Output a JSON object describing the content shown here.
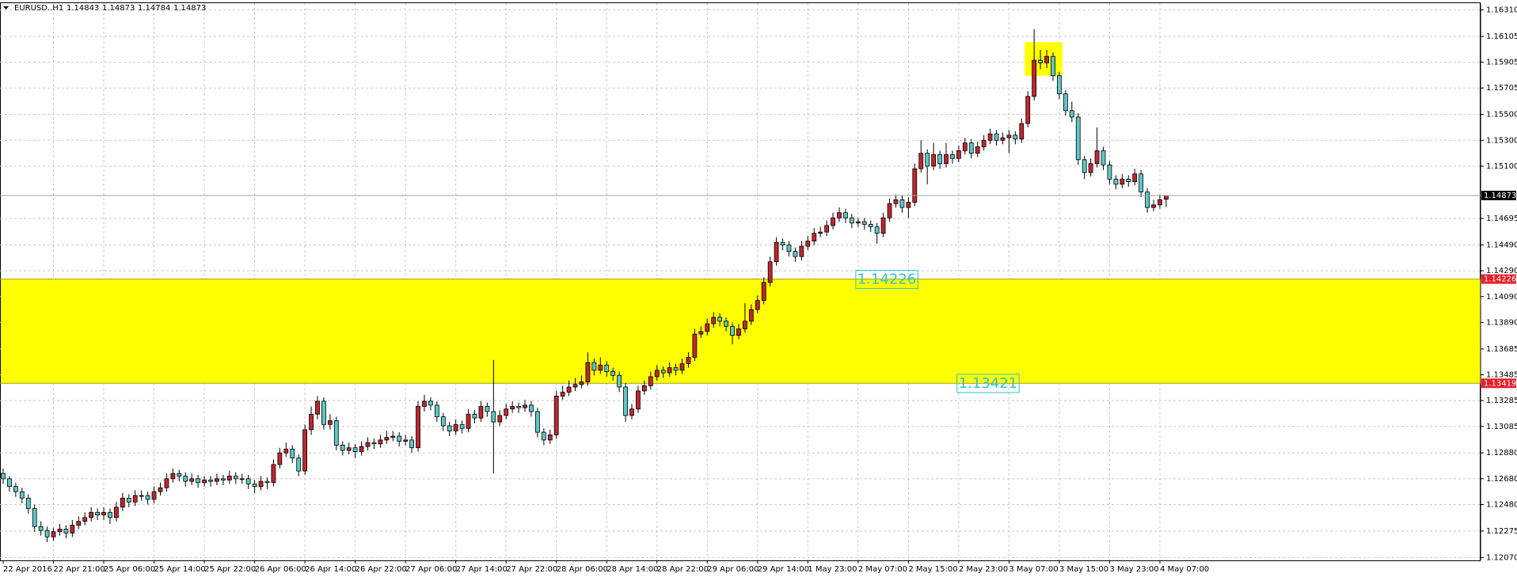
{
  "chart_data": {
    "type": "candlestick",
    "symbol": "EURUSD..H1",
    "up_color": "#c0262d",
    "down_color": "#5cc8c8",
    "wick_color": "#000000",
    "grid": true,
    "ylim": [
      1.12048,
      1.16362
    ],
    "yticks": [
      {
        "value": 1.1631,
        "label": "1.16310"
      },
      1.16105,
      1.15905,
      1.15705,
      {
        "value": 1.155,
        "label": "1.15500"
      },
      {
        "value": 1.153,
        "label": "1.15300"
      },
      {
        "value": 1.151,
        "label": "1.15100"
      },
      1.14695,
      {
        "value": 1.1449,
        "label": "1.14490"
      },
      {
        "value": 1.1429,
        "label": "1.14290"
      },
      {
        "value": 1.1409,
        "label": "1.14090"
      },
      {
        "value": 1.1389,
        "label": "1.13890"
      },
      1.13685,
      1.13485,
      1.13285,
      1.13085,
      {
        "value": 1.1288,
        "label": "1.12880"
      },
      {
        "value": 1.1268,
        "label": "1.12680"
      },
      {
        "value": 1.1248,
        "label": "1.12480"
      },
      1.12275,
      {
        "value": 1.1207,
        "label": "1.12070"
      }
    ],
    "zone": {
      "top": 1.14226,
      "bottom": 1.13419,
      "color": "#ffff00"
    },
    "highlight": {
      "top": 1.1606,
      "bottom": 1.158,
      "from": 163,
      "to": 168,
      "color": "#ffff00"
    },
    "annotations": [
      {
        "label": "1.14226",
        "y": 1.14226,
        "x": 135.5
      },
      {
        "label": "1.13421",
        "y": 1.13421,
        "x": 151.6
      }
    ],
    "categories": [
      "22 Apr 2016",
      null,
      null,
      null,
      null,
      null,
      null,
      null,
      "22 Apr 21:00",
      null,
      null,
      null,
      null,
      null,
      null,
      null,
      "25 Apr 06:00",
      null,
      null,
      null,
      null,
      null,
      null,
      null,
      "25 Apr 14:00",
      null,
      null,
      null,
      null,
      null,
      null,
      null,
      "25 Apr 22:00",
      null,
      null,
      null,
      null,
      null,
      null,
      null,
      "26 Apr 06:00",
      null,
      null,
      null,
      null,
      null,
      null,
      null,
      "26 Apr 14:00",
      null,
      null,
      null,
      null,
      null,
      null,
      null,
      "26 Apr 22:00",
      null,
      null,
      null,
      null,
      null,
      null,
      null,
      "27 Apr 06:00",
      null,
      null,
      null,
      null,
      null,
      null,
      null,
      "27 Apr 14:00",
      null,
      null,
      null,
      null,
      null,
      null,
      null,
      "27 Apr 22:00",
      null,
      null,
      null,
      null,
      null,
      null,
      null,
      "28 Apr 06:00",
      null,
      null,
      null,
      null,
      null,
      null,
      null,
      "28 Apr 14:00",
      null,
      null,
      null,
      null,
      null,
      null,
      null,
      "28 Apr 22:00",
      null,
      null,
      null,
      null,
      null,
      null,
      null,
      "29 Apr 06:00",
      null,
      null,
      null,
      null,
      null,
      null,
      null,
      "29 Apr 14:00",
      null,
      null,
      null,
      null,
      null,
      null,
      null,
      "1 May 23:00",
      null,
      null,
      null,
      null,
      null,
      null,
      null,
      "2 May 07:00",
      null,
      null,
      null,
      null,
      null,
      null,
      null,
      "2 May 15:00",
      null,
      null,
      null,
      null,
      null,
      null,
      null,
      "2 May 23:00",
      null,
      null,
      null,
      null,
      null,
      null,
      null,
      "3 May 07:00",
      null,
      null,
      null,
      null,
      null,
      null,
      null,
      "3 May 15:00",
      null,
      null,
      null,
      null,
      null,
      null,
      null,
      "3 May 23:00",
      null,
      null,
      null,
      null,
      null,
      null,
      null,
      "4 May 07:00",
      null
    ],
    "candles": [
      [
        1.1272,
        1.1276,
        1.1264,
        1.1268
      ],
      [
        1.1268,
        1.127,
        1.1258,
        1.1262
      ],
      [
        1.1262,
        1.1265,
        1.1254,
        1.1258
      ],
      [
        1.1258,
        1.1261,
        1.1249,
        1.1253
      ],
      [
        1.1253,
        1.1256,
        1.1241,
        1.1245
      ],
      [
        1.1245,
        1.1248,
        1.1227,
        1.1231
      ],
      [
        1.1231,
        1.1235,
        1.1224,
        1.1228
      ],
      [
        1.1228,
        1.1231,
        1.1219,
        1.1223
      ],
      [
        1.1223,
        1.123,
        1.122,
        1.1227
      ],
      [
        1.1227,
        1.1233,
        1.1224,
        1.1229
      ],
      [
        1.1229,
        1.1232,
        1.1222,
        1.1226
      ],
      [
        1.1226,
        1.1236,
        1.1223,
        1.1232
      ],
      [
        1.1232,
        1.1239,
        1.1229,
        1.1235
      ],
      [
        1.1235,
        1.1242,
        1.1232,
        1.1238
      ],
      [
        1.1238,
        1.1246,
        1.1235,
        1.1242
      ],
      [
        1.1242,
        1.1245,
        1.1236,
        1.124
      ],
      [
        1.124,
        1.1246,
        1.1236,
        1.1242
      ],
      [
        1.1242,
        1.1245,
        1.1233,
        1.1238
      ],
      [
        1.1238,
        1.125,
        1.1235,
        1.1246
      ],
      [
        1.1246,
        1.1257,
        1.1243,
        1.1253
      ],
      [
        1.1253,
        1.1256,
        1.1246,
        1.125
      ],
      [
        1.125,
        1.1259,
        1.1247,
        1.1255
      ],
      [
        1.1255,
        1.1259,
        1.1251,
        1.1255
      ],
      [
        1.1255,
        1.1258,
        1.1248,
        1.1252
      ],
      [
        1.1252,
        1.1262,
        1.1249,
        1.1258
      ],
      [
        1.1258,
        1.1265,
        1.1255,
        1.1261
      ],
      [
        1.1261,
        1.1272,
        1.1258,
        1.1268
      ],
      [
        1.1268,
        1.1276,
        1.1265,
        1.1272
      ],
      [
        1.1272,
        1.1275,
        1.1266,
        1.127
      ],
      [
        1.127,
        1.1273,
        1.1262,
        1.1266
      ],
      [
        1.1266,
        1.1272,
        1.1263,
        1.1268
      ],
      [
        1.1268,
        1.1271,
        1.1261,
        1.1265
      ],
      [
        1.1265,
        1.127,
        1.1262,
        1.1267
      ],
      [
        1.1267,
        1.127,
        1.1262,
        1.1266
      ],
      [
        1.1266,
        1.1272,
        1.1263,
        1.1268
      ],
      [
        1.1268,
        1.1271,
        1.1263,
        1.1267
      ],
      [
        1.1267,
        1.1274,
        1.1264,
        1.127
      ],
      [
        1.127,
        1.1273,
        1.1264,
        1.1268
      ],
      [
        1.1268,
        1.1272,
        1.1264,
        1.1268
      ],
      [
        1.1268,
        1.1271,
        1.126,
        1.1264
      ],
      [
        1.1264,
        1.1267,
        1.1257,
        1.1262
      ],
      [
        1.1262,
        1.127,
        1.1259,
        1.1266
      ],
      [
        1.1266,
        1.1269,
        1.126,
        1.1265
      ],
      [
        1.1265,
        1.1283,
        1.1262,
        1.1279
      ],
      [
        1.1279,
        1.1292,
        1.1276,
        1.1288
      ],
      [
        1.1288,
        1.1296,
        1.1285,
        1.1291
      ],
      [
        1.1291,
        1.1294,
        1.128,
        1.1284
      ],
      [
        1.1284,
        1.1287,
        1.127,
        1.1274
      ],
      [
        1.1274,
        1.131,
        1.1271,
        1.1306
      ],
      [
        1.1306,
        1.1324,
        1.1302,
        1.1318
      ],
      [
        1.1318,
        1.1332,
        1.1314,
        1.1328
      ],
      [
        1.1328,
        1.1331,
        1.1306,
        1.131
      ],
      [
        1.131,
        1.1318,
        1.1306,
        1.1313
      ],
      [
        1.1313,
        1.1316,
        1.129,
        1.1294
      ],
      [
        1.1294,
        1.1297,
        1.1286,
        1.129
      ],
      [
        1.129,
        1.1296,
        1.1287,
        1.1292
      ],
      [
        1.1292,
        1.1295,
        1.1284,
        1.1289
      ],
      [
        1.1289,
        1.1297,
        1.1286,
        1.1293
      ],
      [
        1.1293,
        1.13,
        1.129,
        1.1296
      ],
      [
        1.1296,
        1.1299,
        1.1291,
        1.1295
      ],
      [
        1.1295,
        1.1302,
        1.1292,
        1.1298
      ],
      [
        1.1298,
        1.1305,
        1.1295,
        1.13
      ],
      [
        1.13,
        1.1305,
        1.1297,
        1.1301
      ],
      [
        1.1301,
        1.1304,
        1.1293,
        1.1297
      ],
      [
        1.1297,
        1.1302,
        1.1294,
        1.1298
      ],
      [
        1.1298,
        1.1301,
        1.1288,
        1.1292
      ],
      [
        1.1292,
        1.1328,
        1.1289,
        1.1324
      ],
      [
        1.1324,
        1.1333,
        1.132,
        1.1328
      ],
      [
        1.1328,
        1.1331,
        1.1321,
        1.1325
      ],
      [
        1.1325,
        1.1328,
        1.1312,
        1.1316
      ],
      [
        1.1316,
        1.1319,
        1.1305,
        1.1309
      ],
      [
        1.1309,
        1.1312,
        1.1301,
        1.1305
      ],
      [
        1.1305,
        1.1314,
        1.1302,
        1.131
      ],
      [
        1.131,
        1.1313,
        1.1303,
        1.1307
      ],
      [
        1.1307,
        1.1322,
        1.1304,
        1.1318
      ],
      [
        1.1318,
        1.1321,
        1.1311,
        1.1315
      ],
      [
        1.1315,
        1.1328,
        1.1312,
        1.1324
      ],
      [
        1.1324,
        1.1327,
        1.1316,
        1.132
      ],
      [
        1.132,
        1.136,
        1.1272,
        1.1312
      ],
      [
        1.1312,
        1.1321,
        1.1309,
        1.1317
      ],
      [
        1.1317,
        1.1326,
        1.1314,
        1.1322
      ],
      [
        1.1322,
        1.1328,
        1.1319,
        1.1324
      ],
      [
        1.1324,
        1.1327,
        1.1319,
        1.1323
      ],
      [
        1.1323,
        1.1329,
        1.132,
        1.1325
      ],
      [
        1.1325,
        1.1328,
        1.1316,
        1.132
      ],
      [
        1.132,
        1.1323,
        1.13,
        1.1304
      ],
      [
        1.1304,
        1.1307,
        1.1294,
        1.1298
      ],
      [
        1.1298,
        1.1306,
        1.1295,
        1.1302
      ],
      [
        1.1302,
        1.1336,
        1.1299,
        1.1332
      ],
      [
        1.1332,
        1.134,
        1.1329,
        1.1335
      ],
      [
        1.1335,
        1.1344,
        1.1332,
        1.1339
      ],
      [
        1.1339,
        1.1346,
        1.1336,
        1.1341
      ],
      [
        1.1341,
        1.1348,
        1.1338,
        1.1343
      ],
      [
        1.1343,
        1.1366,
        1.134,
        1.1358
      ],
      [
        1.1358,
        1.1361,
        1.1348,
        1.1352
      ],
      [
        1.1352,
        1.1362,
        1.1349,
        1.1356
      ],
      [
        1.1356,
        1.1359,
        1.1347,
        1.1351
      ],
      [
        1.1351,
        1.1354,
        1.1344,
        1.1348
      ],
      [
        1.1348,
        1.1351,
        1.1335,
        1.1339
      ],
      [
        1.1339,
        1.1342,
        1.1312,
        1.1317
      ],
      [
        1.1317,
        1.1326,
        1.1314,
        1.1322
      ],
      [
        1.1322,
        1.134,
        1.1319,
        1.1336
      ],
      [
        1.1336,
        1.1344,
        1.1333,
        1.134
      ],
      [
        1.134,
        1.1351,
        1.1337,
        1.1347
      ],
      [
        1.1347,
        1.1356,
        1.1344,
        1.1352
      ],
      [
        1.1352,
        1.1355,
        1.1346,
        1.135
      ],
      [
        1.135,
        1.1358,
        1.1347,
        1.1354
      ],
      [
        1.1354,
        1.1357,
        1.1348,
        1.1352
      ],
      [
        1.1352,
        1.1361,
        1.1349,
        1.1357
      ],
      [
        1.1357,
        1.1366,
        1.1354,
        1.1362
      ],
      [
        1.1362,
        1.1384,
        1.1359,
        1.138
      ],
      [
        1.138,
        1.1386,
        1.1377,
        1.1382
      ],
      [
        1.1382,
        1.1392,
        1.1379,
        1.1388
      ],
      [
        1.1388,
        1.1397,
        1.1385,
        1.1393
      ],
      [
        1.1393,
        1.1396,
        1.1386,
        1.139
      ],
      [
        1.139,
        1.1393,
        1.1382,
        1.1386
      ],
      [
        1.1386,
        1.1389,
        1.1372,
        1.1379
      ],
      [
        1.1379,
        1.1388,
        1.1376,
        1.1384
      ],
      [
        1.1384,
        1.1404,
        1.1381,
        1.139
      ],
      [
        1.139,
        1.1403,
        1.1387,
        1.1399
      ],
      [
        1.1399,
        1.141,
        1.1396,
        1.1406
      ],
      [
        1.1406,
        1.1424,
        1.1403,
        1.142
      ],
      [
        1.142,
        1.144,
        1.1417,
        1.1436
      ],
      [
        1.1436,
        1.1455,
        1.1433,
        1.1451
      ],
      [
        1.1451,
        1.1454,
        1.1445,
        1.1449
      ],
      [
        1.1449,
        1.1452,
        1.144,
        1.1444
      ],
      [
        1.1444,
        1.1447,
        1.1436,
        1.144
      ],
      [
        1.144,
        1.1452,
        1.1437,
        1.1448
      ],
      [
        1.1448,
        1.1456,
        1.1445,
        1.1452
      ],
      [
        1.1452,
        1.1462,
        1.1449,
        1.1458
      ],
      [
        1.1458,
        1.1463,
        1.1455,
        1.1459
      ],
      [
        1.1459,
        1.1468,
        1.1456,
        1.1464
      ],
      [
        1.1464,
        1.1474,
        1.1461,
        1.147
      ],
      [
        1.147,
        1.1478,
        1.1467,
        1.1474
      ],
      [
        1.1474,
        1.1477,
        1.1466,
        1.147
      ],
      [
        1.147,
        1.1473,
        1.1462,
        1.1466
      ],
      [
        1.1466,
        1.147,
        1.1463,
        1.1467
      ],
      [
        1.1467,
        1.147,
        1.1461,
        1.1465
      ],
      [
        1.1465,
        1.1468,
        1.1459,
        1.1463
      ],
      [
        1.1463,
        1.1466,
        1.145,
        1.1458
      ],
      [
        1.1458,
        1.1474,
        1.1455,
        1.147
      ],
      [
        1.147,
        1.1485,
        1.1467,
        1.1481
      ],
      [
        1.1481,
        1.1488,
        1.1478,
        1.1484
      ],
      [
        1.1484,
        1.1487,
        1.1474,
        1.1478
      ],
      [
        1.1478,
        1.1486,
        1.147,
        1.1482
      ],
      [
        1.1482,
        1.1512,
        1.1479,
        1.1508
      ],
      [
        1.1508,
        1.153,
        1.1505,
        1.152
      ],
      [
        1.152,
        1.1523,
        1.1496,
        1.151
      ],
      [
        1.151,
        1.1528,
        1.1507,
        1.1519
      ],
      [
        1.1519,
        1.1522,
        1.1508,
        1.1512
      ],
      [
        1.1512,
        1.1528,
        1.1509,
        1.1519
      ],
      [
        1.1519,
        1.1522,
        1.1512,
        1.1516
      ],
      [
        1.1516,
        1.1526,
        1.1513,
        1.1522
      ],
      [
        1.1522,
        1.1532,
        1.1519,
        1.1528
      ],
      [
        1.1528,
        1.1531,
        1.1516,
        1.152
      ],
      [
        1.152,
        1.1529,
        1.1517,
        1.1525
      ],
      [
        1.1525,
        1.1534,
        1.1522,
        1.153
      ],
      [
        1.153,
        1.1539,
        1.1527,
        1.1535
      ],
      [
        1.1535,
        1.1538,
        1.1526,
        1.153
      ],
      [
        1.153,
        1.1536,
        1.1527,
        1.1532
      ],
      [
        1.1532,
        1.1538,
        1.152,
        1.1534
      ],
      [
        1.1534,
        1.1537,
        1.1527,
        1.1531
      ],
      [
        1.1531,
        1.1547,
        1.1528,
        1.1543
      ],
      [
        1.1543,
        1.1568,
        1.154,
        1.1564
      ],
      [
        1.1564,
        1.1616,
        1.1561,
        1.1592
      ],
      [
        1.1592,
        1.16,
        1.1585,
        1.159
      ],
      [
        1.159,
        1.16,
        1.1586,
        1.1595
      ],
      [
        1.1595,
        1.1598,
        1.1576,
        1.158
      ],
      [
        1.158,
        1.1583,
        1.1562,
        1.1566
      ],
      [
        1.1566,
        1.1569,
        1.1549,
        1.1553
      ],
      [
        1.1553,
        1.156,
        1.1544,
        1.1548
      ],
      [
        1.1548,
        1.1551,
        1.1511,
        1.1515
      ],
      [
        1.1515,
        1.1518,
        1.15,
        1.1505
      ],
      [
        1.1505,
        1.1516,
        1.1502,
        1.1512
      ],
      [
        1.1512,
        1.154,
        1.1509,
        1.1522
      ],
      [
        1.1522,
        1.1525,
        1.1507,
        1.1511
      ],
      [
        1.1511,
        1.1514,
        1.1496,
        1.15
      ],
      [
        1.15,
        1.1503,
        1.1492,
        1.1496
      ],
      [
        1.1496,
        1.1504,
        1.1493,
        1.15
      ],
      [
        1.15,
        1.1503,
        1.1494,
        1.1498
      ],
      [
        1.1498,
        1.1508,
        1.1495,
        1.1504
      ],
      [
        1.1504,
        1.1507,
        1.1486,
        1.149
      ],
      [
        1.149,
        1.1493,
        1.1474,
        1.1478
      ],
      [
        1.1478,
        1.1484,
        1.1475,
        1.148
      ],
      [
        1.148,
        1.1488,
        1.1477,
        1.1484
      ],
      [
        1.14843,
        1.14873,
        1.14784,
        1.14873
      ]
    ]
  }
}
